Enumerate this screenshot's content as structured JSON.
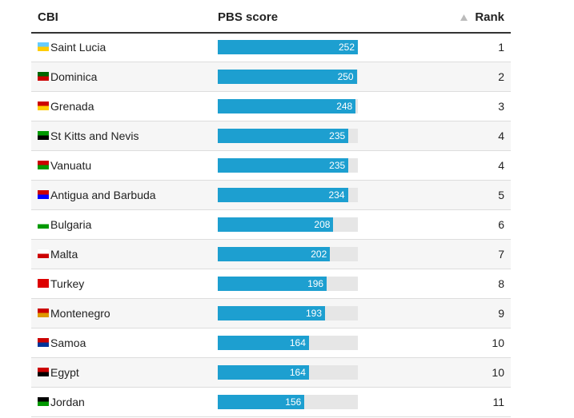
{
  "table": {
    "headers": [
      "CBI",
      "PBS score",
      "Rank"
    ],
    "rows": [
      {
        "country": "Saint Lucia",
        "score": 252,
        "rank": 1
      },
      {
        "country": "Dominica",
        "score": 250,
        "rank": 2
      },
      {
        "country": "Grenada",
        "score": 248,
        "rank": 3
      },
      {
        "country": "St Kitts and Nevis",
        "score": 235,
        "rank": 4
      },
      {
        "country": "Vanuatu",
        "score": 235,
        "rank": 4
      },
      {
        "country": "Antigua and Barbuda",
        "score": 234,
        "rank": 5
      },
      {
        "country": "Bulgaria",
        "score": 208,
        "rank": 6
      },
      {
        "country": "Malta",
        "score": 202,
        "rank": 7
      },
      {
        "country": "Turkey",
        "score": 196,
        "rank": 8
      },
      {
        "country": "Montenegro",
        "score": 193,
        "rank": 9
      },
      {
        "country": "Samoa",
        "score": 164,
        "rank": 10
      },
      {
        "country": "Egypt",
        "score": 164,
        "rank": 10
      },
      {
        "country": "Jordan",
        "score": 156,
        "rank": 11
      }
    ],
    "bar_color": "#1d9fd0"
  }
}
